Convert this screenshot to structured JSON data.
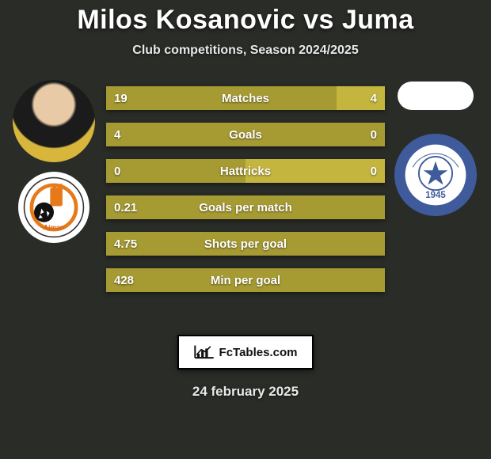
{
  "bg_color": "#2a2c28",
  "title": "Milos Kosanovic vs Juma",
  "title_fontsize": 34,
  "title_color": "#ffffff",
  "subtitle": "Club competitions, Season 2024/2025",
  "subtitle_fontsize": 16,
  "subtitle_color": "#e8e8e8",
  "date": "24 february 2025",
  "date_fontsize": 17,
  "date_color": "#e8e8e8",
  "brand": "FcTables.com",
  "colors": {
    "player1_bar": "#a69a33",
    "player2_bar": "#c4b53e",
    "bar_text": "#ffffff"
  },
  "stats": [
    {
      "label": "Matches",
      "p1": "19",
      "p2": "4",
      "p1_pct": 82.6,
      "p2_pct": 17.4
    },
    {
      "label": "Goals",
      "p1": "4",
      "p2": "0",
      "p1_pct": 100,
      "p2_pct": 0
    },
    {
      "label": "Hattricks",
      "p1": "0",
      "p2": "0",
      "p1_pct": 50,
      "p2_pct": 50
    },
    {
      "label": "Goals per match",
      "p1": "0.21",
      "p2": "",
      "p1_pct": 100,
      "p2_pct": 0
    },
    {
      "label": "Shots per goal",
      "p1": "4.75",
      "p2": "",
      "p1_pct": 100,
      "p2_pct": 0
    },
    {
      "label": "Min per goal",
      "p1": "428",
      "p2": "",
      "p1_pct": 100,
      "p2_pct": 0
    }
  ],
  "club2_year": "1945"
}
